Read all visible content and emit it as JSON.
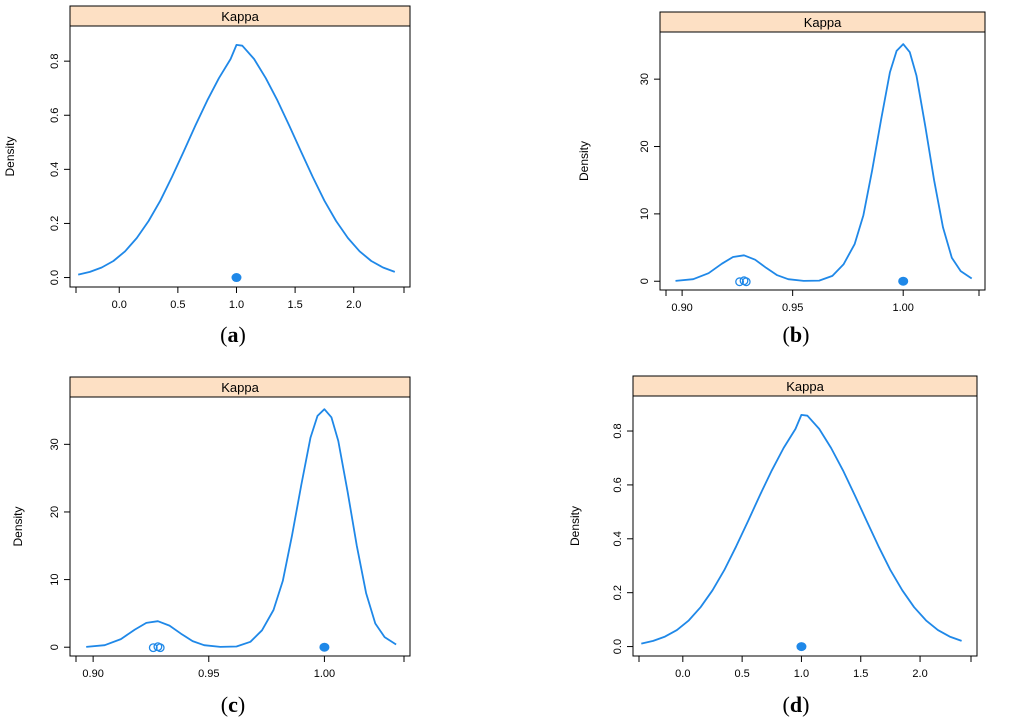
{
  "figure": {
    "panels": [
      {
        "letter": "a",
        "open": "(",
        "close": ")"
      },
      {
        "letter": "b",
        "open": "(",
        "close": ")"
      },
      {
        "letter": "c",
        "open": "(",
        "close": ")"
      },
      {
        "letter": "d",
        "open": "(",
        "close": ")"
      }
    ]
  },
  "colors": {
    "curve": "#1f88e8",
    "strip_fill": "#fde0c4",
    "axis": "#000000"
  },
  "chart_data": [
    {
      "type": "line",
      "strip_label": "Kappa",
      "ylabel": "Density",
      "xlim": [
        -0.42,
        2.48
      ],
      "ylim": [
        -0.035,
        0.93
      ],
      "xticks": [
        "0.0",
        "0.5",
        "1.0",
        "1.5",
        "2.0"
      ],
      "xtick_values": [
        0.0,
        0.5,
        1.0,
        1.5,
        2.0
      ],
      "yticks": [
        "0.0",
        "0.2",
        "0.4",
        "0.6",
        "0.8"
      ],
      "ytick_values": [
        0.0,
        0.2,
        0.4,
        0.6,
        0.8
      ],
      "grid": false,
      "x": [
        -0.35,
        -0.25,
        -0.15,
        -0.05,
        0.05,
        0.15,
        0.25,
        0.35,
        0.45,
        0.55,
        0.65,
        0.75,
        0.85,
        0.95,
        1.0,
        1.05,
        1.15,
        1.25,
        1.35,
        1.45,
        1.55,
        1.65,
        1.75,
        1.85,
        1.95,
        2.05,
        2.15,
        2.25,
        2.35
      ],
      "y": [
        0.011,
        0.021,
        0.037,
        0.061,
        0.097,
        0.146,
        0.209,
        0.284,
        0.372,
        0.466,
        0.562,
        0.654,
        0.737,
        0.808,
        0.86,
        0.857,
        0.808,
        0.737,
        0.654,
        0.562,
        0.466,
        0.372,
        0.284,
        0.209,
        0.146,
        0.097,
        0.061,
        0.037,
        0.021
      ],
      "rug_filled": [
        1.0
      ],
      "rug_open": []
    },
    {
      "type": "line",
      "strip_label": "Kappa",
      "ylabel": "Density",
      "xlim": [
        0.89,
        1.037
      ],
      "ylim": [
        -1.3,
        37
      ],
      "xticks": [
        "0.90",
        "0.95",
        "1.00"
      ],
      "xtick_values": [
        0.9,
        0.95,
        1.0
      ],
      "yticks": [
        "0",
        "10",
        "20",
        "30"
      ],
      "ytick_values": [
        0,
        10,
        20,
        30
      ],
      "grid": false,
      "x": [
        0.897,
        0.905,
        0.912,
        0.918,
        0.923,
        0.928,
        0.933,
        0.938,
        0.943,
        0.948,
        0.955,
        0.962,
        0.968,
        0.973,
        0.978,
        0.982,
        0.986,
        0.99,
        0.994,
        0.997,
        1.0,
        1.003,
        1.006,
        1.01,
        1.014,
        1.018,
        1.022,
        1.026,
        1.031
      ],
      "y": [
        0.05,
        0.3,
        1.2,
        2.6,
        3.6,
        3.85,
        3.2,
        2.0,
        0.9,
        0.3,
        0.05,
        0.1,
        0.8,
        2.5,
        5.5,
        9.8,
        16.5,
        24.0,
        31.0,
        34.2,
        35.2,
        34.0,
        30.5,
        23.0,
        15.0,
        8.0,
        3.5,
        1.5,
        0.4
      ],
      "rug_filled": [
        1.0
      ],
      "rug_open": [
        0.926,
        0.928,
        0.929
      ]
    },
    {
      "type": "line",
      "strip_label": "Kappa",
      "ylabel": "Density",
      "xlim": [
        0.89,
        1.037
      ],
      "ylim": [
        -1.3,
        37
      ],
      "xticks": [
        "0.90",
        "0.95",
        "1.00"
      ],
      "xtick_values": [
        0.9,
        0.95,
        1.0
      ],
      "yticks": [
        "0",
        "10",
        "20",
        "30"
      ],
      "ytick_values": [
        0,
        10,
        20,
        30
      ],
      "grid": false,
      "x": [
        0.897,
        0.905,
        0.912,
        0.918,
        0.923,
        0.928,
        0.933,
        0.938,
        0.943,
        0.948,
        0.955,
        0.962,
        0.968,
        0.973,
        0.978,
        0.982,
        0.986,
        0.99,
        0.994,
        0.997,
        1.0,
        1.003,
        1.006,
        1.01,
        1.014,
        1.018,
        1.022,
        1.026,
        1.031
      ],
      "y": [
        0.05,
        0.3,
        1.2,
        2.6,
        3.6,
        3.85,
        3.2,
        2.0,
        0.9,
        0.3,
        0.05,
        0.1,
        0.8,
        2.5,
        5.5,
        9.8,
        16.5,
        24.0,
        31.0,
        34.2,
        35.2,
        34.0,
        30.5,
        23.0,
        15.0,
        8.0,
        3.5,
        1.5,
        0.4
      ],
      "rug_filled": [
        1.0
      ],
      "rug_open": [
        0.926,
        0.928,
        0.929
      ]
    },
    {
      "type": "line",
      "strip_label": "Kappa",
      "ylabel": "Density",
      "xlim": [
        -0.42,
        2.48
      ],
      "ylim": [
        -0.035,
        0.93
      ],
      "xticks": [
        "0.0",
        "0.5",
        "1.0",
        "1.5",
        "2.0"
      ],
      "xtick_values": [
        0.0,
        0.5,
        1.0,
        1.5,
        2.0
      ],
      "yticks": [
        "0.0",
        "0.2",
        "0.4",
        "0.6",
        "0.8"
      ],
      "ytick_values": [
        0.0,
        0.2,
        0.4,
        0.6,
        0.8
      ],
      "grid": false,
      "x": [
        -0.35,
        -0.25,
        -0.15,
        -0.05,
        0.05,
        0.15,
        0.25,
        0.35,
        0.45,
        0.55,
        0.65,
        0.75,
        0.85,
        0.95,
        1.0,
        1.05,
        1.15,
        1.25,
        1.35,
        1.45,
        1.55,
        1.65,
        1.75,
        1.85,
        1.95,
        2.05,
        2.15,
        2.25,
        2.35
      ],
      "y": [
        0.011,
        0.021,
        0.037,
        0.061,
        0.097,
        0.146,
        0.209,
        0.284,
        0.372,
        0.466,
        0.562,
        0.654,
        0.737,
        0.808,
        0.86,
        0.857,
        0.808,
        0.737,
        0.654,
        0.562,
        0.466,
        0.372,
        0.284,
        0.209,
        0.146,
        0.097,
        0.061,
        0.037,
        0.021
      ],
      "rug_filled": [
        1.0
      ],
      "rug_open": []
    }
  ]
}
